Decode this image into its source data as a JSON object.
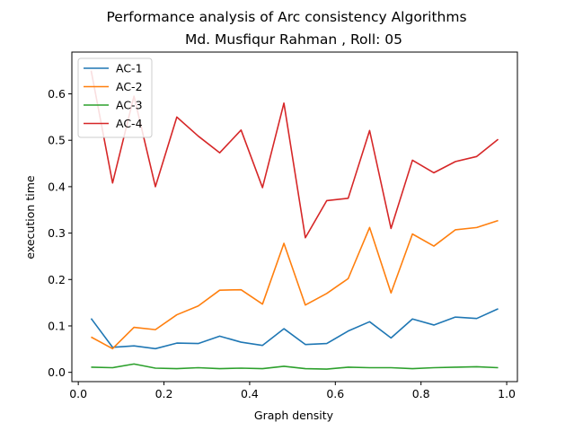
{
  "chart_data": {
    "type": "line",
    "title": "Performance analysis of Arc consistency Algorithms",
    "subtitle": "Md. Musfiqur Rahman , Roll: 05",
    "xlabel": "Graph density",
    "ylabel": "execution time",
    "xlim": [
      -0.015,
      1.025
    ],
    "ylim": [
      -0.02,
      0.69
    ],
    "xticks": [
      0.0,
      0.2,
      0.4,
      0.6,
      0.8,
      1.0
    ],
    "xtick_labels": [
      "0.0",
      "0.2",
      "0.4",
      "0.6",
      "0.8",
      "1.0"
    ],
    "yticks": [
      0.0,
      0.1,
      0.2,
      0.3,
      0.4,
      0.5,
      0.6
    ],
    "ytick_labels": [
      "0.0",
      "0.1",
      "0.2",
      "0.3",
      "0.4",
      "0.5",
      "0.6"
    ],
    "grid": false,
    "legend_position": "top-left",
    "x": [
      0.03,
      0.08,
      0.13,
      0.18,
      0.23,
      0.28,
      0.33,
      0.38,
      0.43,
      0.48,
      0.53,
      0.58,
      0.63,
      0.68,
      0.73,
      0.78,
      0.83,
      0.88,
      0.93,
      0.98
    ],
    "series": [
      {
        "name": "AC-1",
        "color": "#1f77b4",
        "values": [
          0.116,
          0.054,
          0.057,
          0.051,
          0.063,
          0.062,
          0.078,
          0.065,
          0.058,
          0.094,
          0.06,
          0.062,
          0.089,
          0.109,
          0.074,
          0.115,
          0.102,
          0.119,
          0.116,
          0.137
        ]
      },
      {
        "name": "AC-2",
        "color": "#ff7f0e",
        "values": [
          0.076,
          0.051,
          0.097,
          0.092,
          0.124,
          0.143,
          0.177,
          0.178,
          0.147,
          0.278,
          0.145,
          0.17,
          0.202,
          0.312,
          0.171,
          0.298,
          0.272,
          0.307,
          0.312,
          0.327
        ]
      },
      {
        "name": "AC-3",
        "color": "#2ca02c",
        "values": [
          0.011,
          0.01,
          0.018,
          0.009,
          0.008,
          0.01,
          0.008,
          0.009,
          0.008,
          0.013,
          0.008,
          0.007,
          0.011,
          0.01,
          0.01,
          0.008,
          0.01,
          0.011,
          0.012,
          0.01
        ]
      },
      {
        "name": "AC-4",
        "color": "#d62728",
        "values": [
          0.65,
          0.408,
          0.595,
          0.4,
          0.55,
          0.509,
          0.473,
          0.522,
          0.398,
          0.58,
          0.29,
          0.37,
          0.375,
          0.521,
          0.31,
          0.457,
          0.43,
          0.454,
          0.465,
          0.502
        ]
      }
    ]
  }
}
